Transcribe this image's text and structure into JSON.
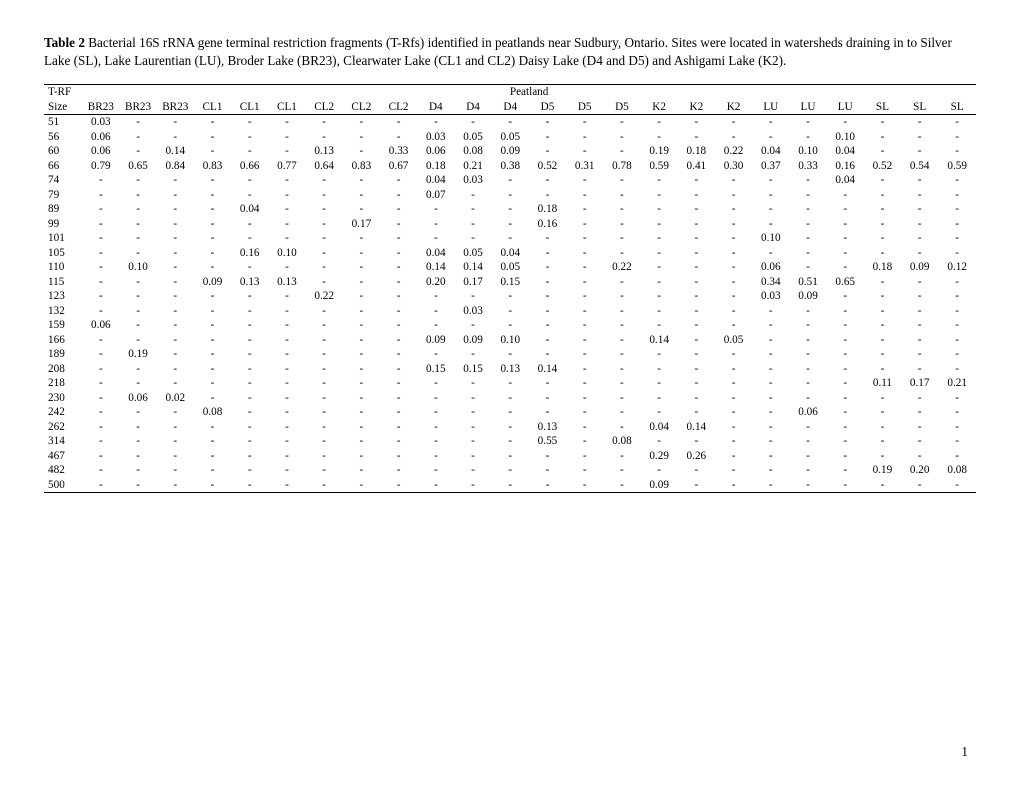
{
  "caption": {
    "label": "Table 2",
    "text": " Bacterial 16S rRNA gene terminal restriction fragments (T-Rfs) identified in peatlands near Sudbury, Ontario. Sites were located in watersheds draining in to Silver Lake (SL), Lake Laurentian (LU), Broder Lake (BR23), Clearwater Lake (CL1 and CL2) Daisy Lake (D4 and D5) and Ashigami Lake (K2)."
  },
  "header": {
    "corner": "T-RF",
    "group_label": "Peatland",
    "size_label": "Size",
    "columns": [
      "BR23",
      "BR23",
      "BR23",
      "CL1",
      "CL1",
      "CL1",
      "CL2",
      "CL2",
      "CL2",
      "D4",
      "D4",
      "D4",
      "D5",
      "D5",
      "D5",
      "K2",
      "K2",
      "K2",
      "LU",
      "LU",
      "LU",
      "SL",
      "SL",
      "SL"
    ]
  },
  "rows": [
    {
      "size": "51",
      "v": [
        "0.03",
        "-",
        "-",
        "-",
        "-",
        "-",
        "-",
        "-",
        "-",
        "-",
        "-",
        "-",
        "-",
        "-",
        "-",
        "-",
        "-",
        "-",
        "-",
        "-",
        "-",
        "-",
        "-",
        "-"
      ]
    },
    {
      "size": "56",
      "v": [
        "0.06",
        "-",
        "-",
        "-",
        "-",
        "-",
        "-",
        "-",
        "-",
        "0.03",
        "0.05",
        "0.05",
        "-",
        "-",
        "-",
        "-",
        "-",
        "-",
        "-",
        "-",
        "0.10",
        "-",
        "-",
        "-"
      ]
    },
    {
      "size": "60",
      "v": [
        "0.06",
        "-",
        "0.14",
        "-",
        "-",
        "-",
        "0.13",
        "-",
        "0.33",
        "0.06",
        "0.08",
        "0.09",
        "-",
        "-",
        "-",
        "0.19",
        "0.18",
        "0.22",
        "0.04",
        "0.10",
        "0.04",
        "-",
        "-",
        "-"
      ]
    },
    {
      "size": "66",
      "v": [
        "0.79",
        "0.65",
        "0.84",
        "0.83",
        "0.66",
        "0.77",
        "0.64",
        "0.83",
        "0.67",
        "0.18",
        "0.21",
        "0.38",
        "0.52",
        "0.31",
        "0.78",
        "0.59",
        "0.41",
        "0.30",
        "0.37",
        "0.33",
        "0.16",
        "0.52",
        "0.54",
        "0.59"
      ]
    },
    {
      "size": "74",
      "v": [
        "-",
        "-",
        "-",
        "-",
        "-",
        "-",
        "-",
        "-",
        "-",
        "0.04",
        "0.03",
        "-",
        "-",
        "-",
        "-",
        "-",
        "-",
        "-",
        "-",
        "-",
        "0.04",
        "-",
        "-",
        "-"
      ]
    },
    {
      "size": "79",
      "v": [
        "-",
        "-",
        "-",
        "-",
        "-",
        "-",
        "-",
        "-",
        "-",
        "0.07",
        "-",
        "-",
        "-",
        "-",
        "-",
        "-",
        "-",
        "-",
        "-",
        "-",
        "-",
        "-",
        "-",
        "-"
      ]
    },
    {
      "size": "89",
      "v": [
        "-",
        "-",
        "-",
        "-",
        "0.04",
        "-",
        "-",
        "-",
        "-",
        "-",
        "-",
        "-",
        "0.18",
        "-",
        "-",
        "-",
        "-",
        "-",
        "-",
        "-",
        "-",
        "-",
        "-",
        "-"
      ]
    },
    {
      "size": "99",
      "v": [
        "-",
        "-",
        "-",
        "-",
        "-",
        "-",
        "-",
        "0.17",
        "-",
        "-",
        "-",
        "-",
        "0.16",
        "-",
        "-",
        "-",
        "-",
        "-",
        "-",
        "-",
        "-",
        "-",
        "-",
        "-"
      ]
    },
    {
      "size": "101",
      "v": [
        "-",
        "-",
        "-",
        "-",
        "-",
        "-",
        "-",
        "-",
        "-",
        "-",
        "-",
        "-",
        "-",
        "-",
        "-",
        "-",
        "-",
        "-",
        "0.10",
        "-",
        "-",
        "-",
        "-",
        "-"
      ]
    },
    {
      "size": "105",
      "v": [
        "-",
        "-",
        "-",
        "-",
        "0.16",
        "0.10",
        "-",
        "-",
        "-",
        "0.04",
        "0.05",
        "0.04",
        "-",
        "-",
        "-",
        "-",
        "-",
        "-",
        "-",
        "-",
        "-",
        "-",
        "-",
        "-"
      ]
    },
    {
      "size": "110",
      "v": [
        "-",
        "0.10",
        "-",
        "-",
        "-",
        "-",
        "-",
        "-",
        "-",
        "0.14",
        "0.14",
        "0.05",
        "-",
        "-",
        "0.22",
        "-",
        "-",
        "-",
        "0.06",
        "-",
        "-",
        "0.18",
        "0.09",
        "0.12"
      ]
    },
    {
      "size": "115",
      "v": [
        "-",
        "-",
        "-",
        "0.09",
        "0.13",
        "0.13",
        "-",
        "-",
        "-",
        "0.20",
        "0.17",
        "0.15",
        "-",
        "-",
        "-",
        "-",
        "-",
        "-",
        "0.34",
        "0.51",
        "0.65",
        "-",
        "-",
        "-"
      ]
    },
    {
      "size": "123",
      "v": [
        "-",
        "-",
        "-",
        "-",
        "-",
        "-",
        "0.22",
        "-",
        "-",
        "-",
        "-",
        "-",
        "-",
        "-",
        "-",
        "-",
        "-",
        "-",
        "0.03",
        "0.09",
        "-",
        "-",
        "-",
        "-"
      ]
    },
    {
      "size": "132",
      "v": [
        "-",
        "-",
        "-",
        "-",
        "-",
        "-",
        "-",
        "-",
        "-",
        "-",
        "0.03",
        "-",
        "-",
        "-",
        "-",
        "-",
        "-",
        "-",
        "-",
        "-",
        "-",
        "-",
        "-",
        "-"
      ]
    },
    {
      "size": "159",
      "v": [
        "0.06",
        "-",
        "-",
        "-",
        "-",
        "-",
        "-",
        "-",
        "-",
        "-",
        "-",
        "-",
        "-",
        "-",
        "-",
        "-",
        "-",
        "-",
        "-",
        "-",
        "-",
        "-",
        "-",
        "-"
      ]
    },
    {
      "size": "166",
      "v": [
        "-",
        "-",
        "-",
        "-",
        "-",
        "-",
        "-",
        "-",
        "-",
        "0.09",
        "0.09",
        "0.10",
        "-",
        "-",
        "-",
        "0.14",
        "-",
        "0.05",
        "-",
        "-",
        "-",
        "-",
        "-",
        "-"
      ]
    },
    {
      "size": "189",
      "v": [
        "-",
        "0.19",
        "-",
        "-",
        "-",
        "-",
        "-",
        "-",
        "-",
        "-",
        "-",
        "-",
        "-",
        "-",
        "-",
        "-",
        "-",
        "-",
        "-",
        "-",
        "-",
        "-",
        "-",
        "-"
      ]
    },
    {
      "size": "208",
      "v": [
        "-",
        "-",
        "-",
        "-",
        "-",
        "-",
        "-",
        "-",
        "-",
        "0.15",
        "0.15",
        "0.13",
        "0.14",
        "-",
        "-",
        "-",
        "-",
        "-",
        "-",
        "-",
        "-",
        "-",
        "-",
        "-"
      ]
    },
    {
      "size": "218",
      "v": [
        "-",
        "-",
        "-",
        "-",
        "-",
        "-",
        "-",
        "-",
        "-",
        "-",
        "-",
        "-",
        "-",
        "-",
        "-",
        "-",
        "-",
        "-",
        "-",
        "-",
        "-",
        "0.11",
        "0.17",
        "0.21"
      ]
    },
    {
      "size": "230",
      "v": [
        "-",
        "0.06",
        "0.02",
        "-",
        "-",
        "-",
        "-",
        "-",
        "-",
        "-",
        "-",
        "-",
        "-",
        "-",
        "-",
        "-",
        "-",
        "-",
        "-",
        "-",
        "-",
        "-",
        "-",
        "-"
      ]
    },
    {
      "size": "242",
      "v": [
        "-",
        "-",
        "-",
        "0.08",
        "-",
        "-",
        "-",
        "-",
        "-",
        "-",
        "-",
        "-",
        "-",
        "-",
        "-",
        "-",
        "-",
        "-",
        "-",
        "0.06",
        "-",
        "-",
        "-",
        "-"
      ]
    },
    {
      "size": "262",
      "v": [
        "-",
        "-",
        "-",
        "-",
        "-",
        "-",
        "-",
        "-",
        "-",
        "-",
        "-",
        "-",
        "0.13",
        "-",
        "-",
        "0.04",
        "0.14",
        "-",
        "-",
        "-",
        "-",
        "-",
        "-",
        "-"
      ]
    },
    {
      "size": "314",
      "v": [
        "-",
        "-",
        "-",
        "-",
        "-",
        "-",
        "-",
        "-",
        "-",
        "-",
        "-",
        "-",
        "0.55",
        "-",
        "0.08",
        "-",
        "-",
        "-",
        "-",
        "-",
        "-",
        "-",
        "-",
        "-"
      ]
    },
    {
      "size": "467",
      "v": [
        "-",
        "-",
        "-",
        "-",
        "-",
        "-",
        "-",
        "-",
        "-",
        "-",
        "-",
        "-",
        "-",
        "-",
        "-",
        "0.29",
        "0.26",
        "-",
        "-",
        "-",
        "-",
        "-",
        "-",
        "-"
      ]
    },
    {
      "size": "482",
      "v": [
        "-",
        "-",
        "-",
        "-",
        "-",
        "-",
        "-",
        "-",
        "-",
        "-",
        "-",
        "-",
        "-",
        "-",
        "-",
        "-",
        "-",
        "-",
        "-",
        "-",
        "-",
        "0.19",
        "0.20",
        "0.08"
      ]
    },
    {
      "size": "500",
      "v": [
        "-",
        "-",
        "-",
        "-",
        "-",
        "-",
        "-",
        "-",
        "-",
        "-",
        "-",
        "-",
        "-",
        "-",
        "-",
        "0.09",
        "-",
        "-",
        "-",
        "-",
        "-",
        "-",
        "-",
        "-"
      ]
    }
  ],
  "page_number": "1"
}
